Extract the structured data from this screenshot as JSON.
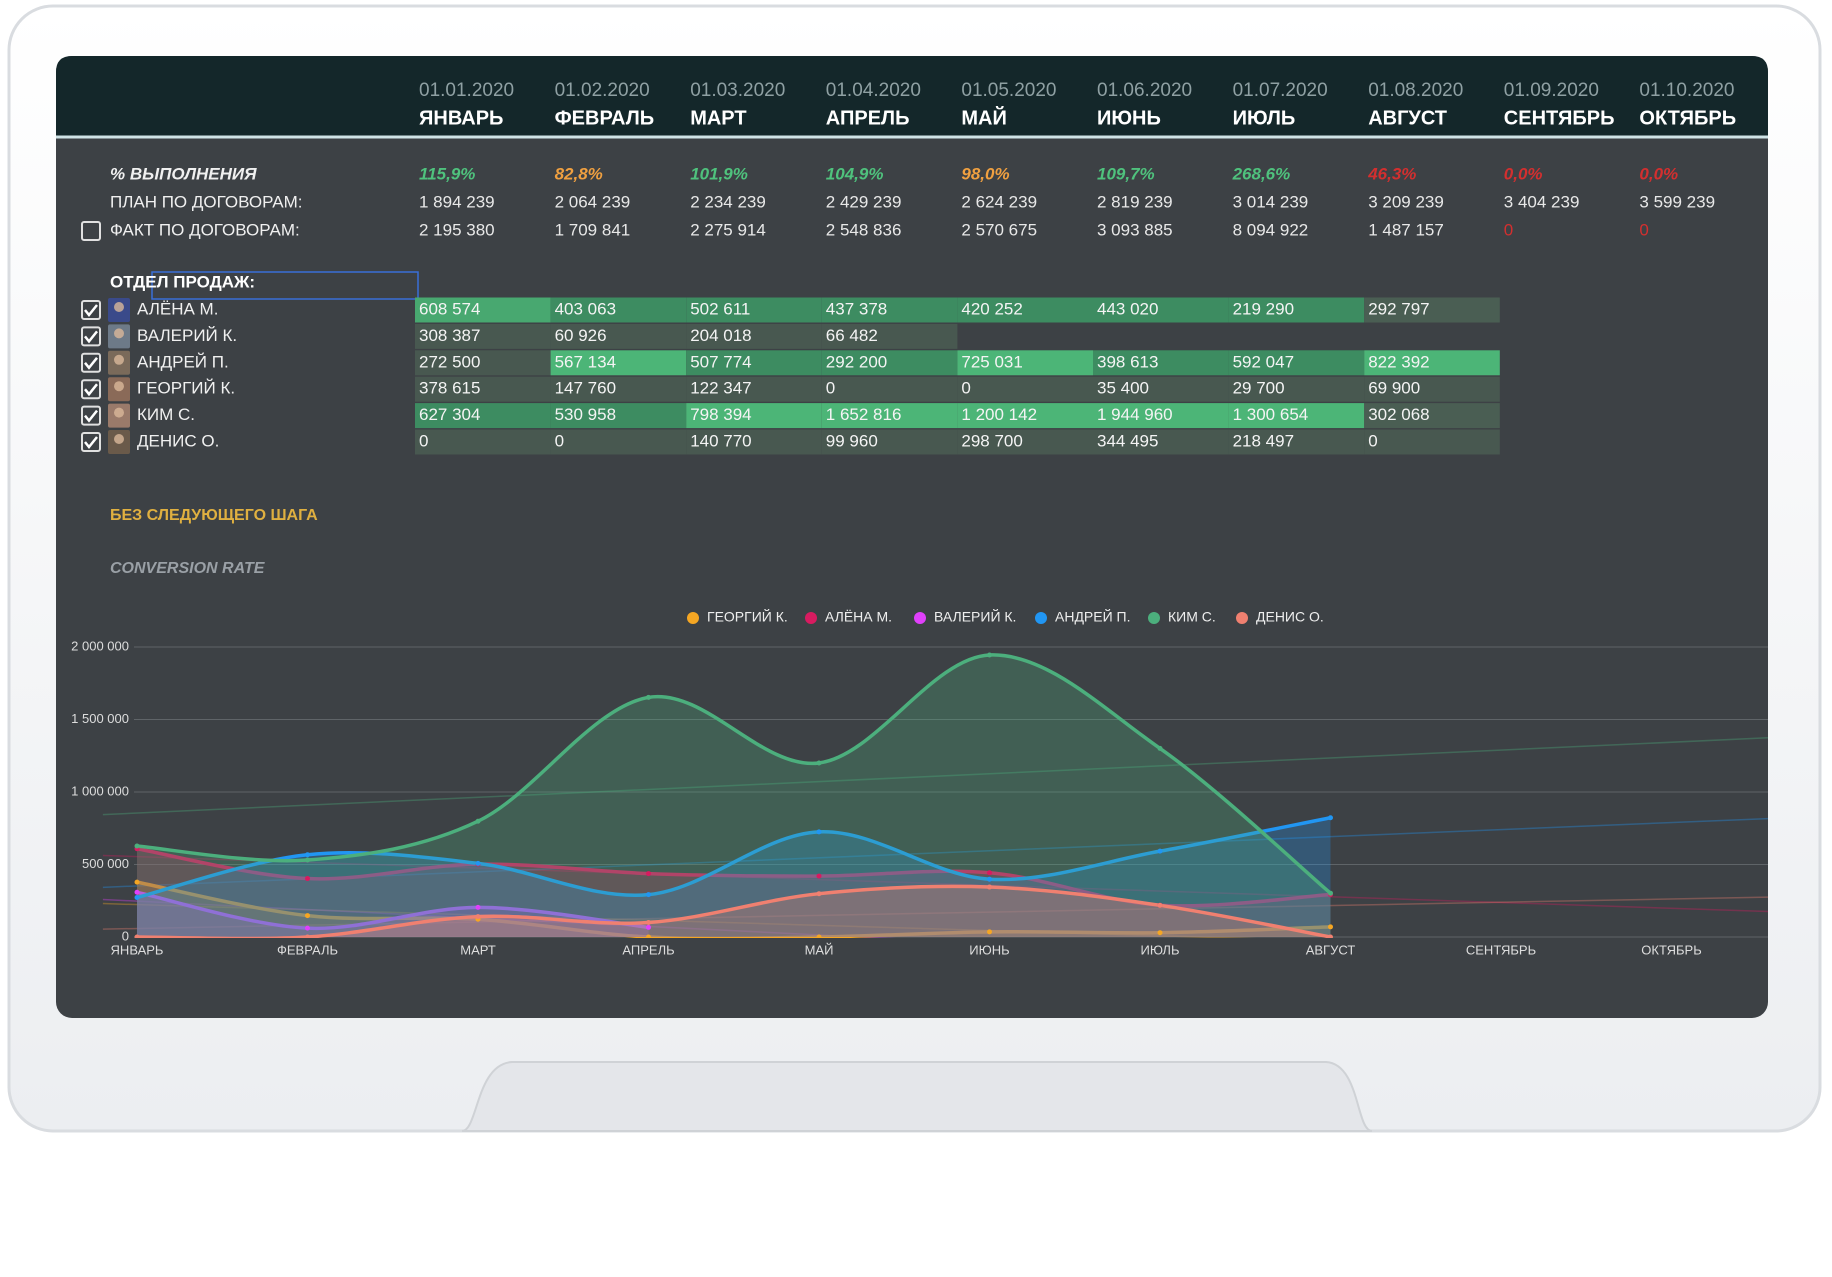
{
  "header": {
    "dates": [
      "01.01.2020",
      "01.02.2020",
      "01.03.2020",
      "01.04.2020",
      "01.05.2020",
      "01.06.2020",
      "01.07.2020",
      "01.08.2020",
      "01.09.2020",
      "01.10.2020"
    ],
    "months": [
      "ЯНВАРЬ",
      "ФЕВРАЛЬ",
      "МАРТ",
      "АПРЕЛЬ",
      "МАЙ",
      "ИЮНЬ",
      "ИЮЛЬ",
      "АВГУСТ",
      "СЕНТЯБРЬ",
      "ОКТЯБРЬ"
    ]
  },
  "summary": {
    "rows": [
      {
        "label": "% ВЫПОЛНЕНИЯ",
        "values": [
          "115,9%",
          "82,8%",
          "101,9%",
          "104,9%",
          "98,0%",
          "109,7%",
          "268,6%",
          "46,3%",
          "0,0%",
          "0,0%"
        ],
        "colors": [
          "#4fc27d",
          "#f0a040",
          "#4fc27d",
          "#4fc27d",
          "#f0a040",
          "#4fc27d",
          "#4fc27d",
          "#d32f2f",
          "#d32f2f",
          "#d32f2f"
        ]
      },
      {
        "label": "ПЛАН ПО ДОГОВОРАМ:",
        "values": [
          "1 894 239",
          "2 064 239",
          "2 234 239",
          "2 429 239",
          "2 624 239",
          "2 819 239",
          "3 014 239",
          "3 209 239",
          "3 404 239",
          "3 599 239"
        ]
      },
      {
        "label": "ФАКТ ПО ДОГОВОРАМ:",
        "values": [
          "2 195 380",
          "1 709 841",
          "2 275 914",
          "2 548 836",
          "2 570 675",
          "3 093 885",
          "8 094 922",
          "1 487 157",
          "0",
          "0"
        ],
        "colors": [
          "#e8e8e8",
          "#e8e8e8",
          "#e8e8e8",
          "#e8e8e8",
          "#e8e8e8",
          "#e8e8e8",
          "#e8e8e8",
          "#e8e8e8",
          "#d32f2f",
          "#d32f2f"
        ]
      }
    ]
  },
  "department": {
    "title": "ОТДЕЛ ПРОДАЖ:",
    "people": [
      {
        "name": "АЛЁНА М.",
        "values": [
          "608 574",
          "403 063",
          "502 611",
          "437 378",
          "420 252",
          "443 020",
          "219 290",
          "292 797"
        ],
        "shades": [
          "#48a870",
          "#3d8c61",
          "#3d8c61",
          "#3d8c61",
          "#3d8c61",
          "#3d8c61",
          "#3d8c61",
          "#4a5e53"
        ]
      },
      {
        "name": "ВАЛЕРИЙ К.",
        "values": [
          "308 387",
          "60 926",
          "204 018",
          "66 482"
        ],
        "shades": [
          "#485850",
          "#485850",
          "#485850",
          "#485850"
        ]
      },
      {
        "name": "АНДРЕЙ П.",
        "values": [
          "272 500",
          "567 134",
          "507 774",
          "292 200",
          "725 031",
          "398 613",
          "592 047",
          "822 392"
        ],
        "shades": [
          "#485850",
          "#4cb577",
          "#3d8c61",
          "#3d8c61",
          "#4cb577",
          "#3d8c61",
          "#3d8c61",
          "#4cb577"
        ]
      },
      {
        "name": "ГЕОРГИЙ К.",
        "values": [
          "378 615",
          "147 760",
          "122 347",
          "0",
          "0",
          "35 400",
          "29 700",
          "69 900"
        ],
        "shades": [
          "#485850",
          "#485850",
          "#485850",
          "#485850",
          "#485850",
          "#485850",
          "#485850",
          "#485850"
        ]
      },
      {
        "name": "КИМ С.",
        "values": [
          "627 304",
          "530 958",
          "798 394",
          "1 652 816",
          "1 200 142",
          "1 944 960",
          "1 300 654",
          "302 068"
        ],
        "shades": [
          "#3d8c61",
          "#3d8c61",
          "#4cb577",
          "#4cb577",
          "#4cb577",
          "#4cb577",
          "#4cb577",
          "#4a5e53"
        ]
      },
      {
        "name": "ДЕНИС О.",
        "values": [
          "0",
          "0",
          "140 770",
          "99 960",
          "298 700",
          "344 495",
          "218 497",
          "0"
        ],
        "shades": [
          "#485850",
          "#485850",
          "#485850",
          "#485850",
          "#485850",
          "#485850",
          "#485850",
          "#485850"
        ]
      }
    ]
  },
  "notes": {
    "next_step": "БЕЗ СЛЕДУЮЩЕГО ШАГА",
    "conversion": "CONVERSION RATE"
  },
  "chart_data": {
    "type": "area",
    "categories": [
      "ЯНВАРЬ",
      "ФЕВРАЛЬ",
      "МАРТ",
      "АПРЕЛЬ",
      "МАЙ",
      "ИЮНЬ",
      "ИЮЛЬ",
      "АВГУСТ",
      "СЕНТЯБРЬ",
      "ОКТЯБРЬ"
    ],
    "series": [
      {
        "name": "ГЕОРГИЙ К.",
        "color": "#f5a623",
        "values": [
          378615,
          147760,
          122347,
          0,
          0,
          35400,
          29700,
          69900,
          null,
          null
        ]
      },
      {
        "name": "АЛЁНА М.",
        "color": "#d81b60",
        "values": [
          608574,
          403063,
          502611,
          437378,
          420252,
          443020,
          219290,
          292797,
          null,
          null
        ]
      },
      {
        "name": "ВАЛЕРИЙ К.",
        "color": "#e040fb",
        "values": [
          308387,
          60926,
          204018,
          66482,
          null,
          null,
          null,
          null,
          null,
          null
        ]
      },
      {
        "name": "АНДРЕЙ П.",
        "color": "#2196f3",
        "values": [
          272500,
          567134,
          507774,
          292200,
          725031,
          398613,
          592047,
          822392,
          null,
          null
        ]
      },
      {
        "name": "КИМ С.",
        "color": "#4caf7d",
        "values": [
          627304,
          530958,
          798394,
          1652816,
          1200142,
          1944960,
          1300654,
          302068,
          null,
          null
        ]
      },
      {
        "name": "ДЕНИС О.",
        "color": "#f08070",
        "values": [
          0,
          0,
          140770,
          99960,
          298700,
          344495,
          218497,
          0,
          null,
          null
        ]
      }
    ],
    "ylim": [
      0,
      2000000
    ],
    "yticks": [
      0,
      {
        "value": 500000,
        "label": "500 000"
      },
      {
        "value": 1000000,
        "label": "1 000 000"
      },
      {
        "value": 1500000,
        "label": "1 500 000"
      },
      {
        "value": 2000000,
        "label": "2 000 000"
      }
    ],
    "grid": true,
    "legend": "top"
  }
}
